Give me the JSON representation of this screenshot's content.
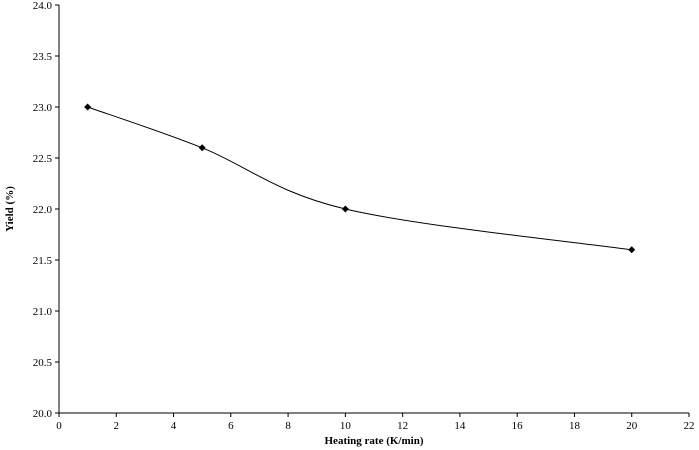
{
  "chart_data": {
    "type": "line",
    "title": "",
    "xlabel": "Heating rate (K/min)",
    "ylabel": "Yield (%)",
    "xlim": [
      0,
      22
    ],
    "ylim": [
      20.0,
      24.0
    ],
    "x_ticks": [
      "0",
      "2",
      "4",
      "6",
      "8",
      "10",
      "12",
      "14",
      "16",
      "18",
      "20",
      "22"
    ],
    "y_ticks": [
      "20.0",
      "20.5",
      "21.0",
      "21.5",
      "22.0",
      "22.5",
      "23.0",
      "23.5",
      "24.0"
    ],
    "grid": false,
    "legend": "none",
    "line_style": "smoothed",
    "marker": "diamond",
    "series_color": "#000000",
    "series": [
      {
        "x": [
          1,
          5,
          10,
          20
        ],
        "y": [
          23.0,
          22.6,
          22.0,
          21.6
        ]
      }
    ]
  }
}
